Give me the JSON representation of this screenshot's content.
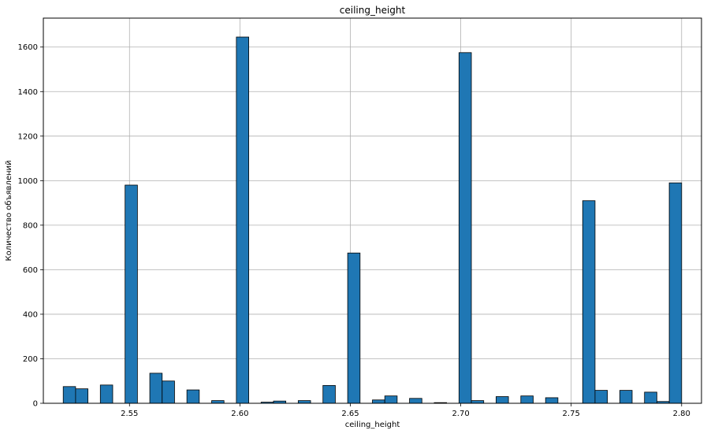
{
  "chart_data": {
    "type": "bar",
    "title": "ceiling_height",
    "xlabel": "ceiling_height",
    "ylabel": "Количество объявлений",
    "xlim": [
      2.511,
      2.809
    ],
    "ylim": [
      0,
      1730
    ],
    "xticks": [
      2.55,
      2.6,
      2.65,
      2.7,
      2.75,
      2.8
    ],
    "xtick_labels": [
      "2.55",
      "2.60",
      "2.65",
      "2.70",
      "2.75",
      "2.80"
    ],
    "yticks": [
      0,
      200,
      400,
      600,
      800,
      1000,
      1200,
      1400,
      1600
    ],
    "ytick_labels": [
      "0",
      "200",
      "400",
      "600",
      "800",
      "1000",
      "1200",
      "1400",
      "1600"
    ],
    "grid": true,
    "bar_color": "#1f77b4",
    "edge_color": "#000000",
    "bin_range": [
      2.52,
      2.8
    ],
    "bin_count": 50,
    "values": [
      75,
      65,
      0,
      82,
      0,
      980,
      0,
      135,
      100,
      0,
      60,
      0,
      12,
      0,
      1645,
      0,
      5,
      10,
      0,
      12,
      0,
      80,
      0,
      675,
      0,
      15,
      33,
      0,
      22,
      0,
      3,
      0,
      1575,
      12,
      0,
      30,
      0,
      33,
      0,
      25,
      0,
      0,
      910,
      58,
      0,
      58,
      0,
      50,
      8,
      990
    ]
  }
}
